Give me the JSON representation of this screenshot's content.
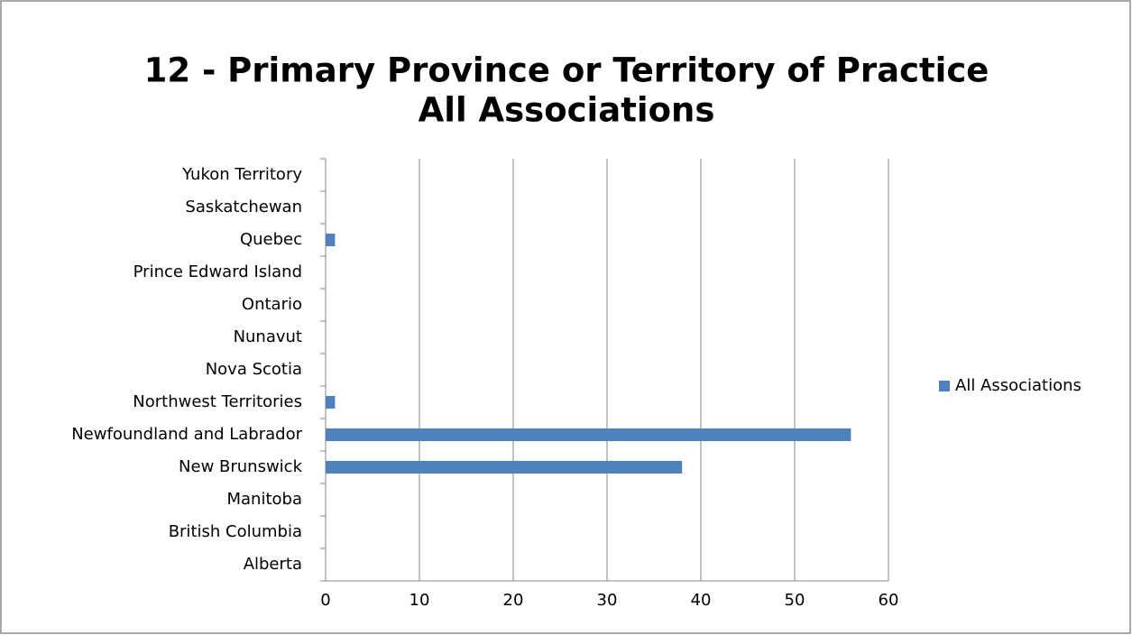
{
  "chart_data": {
    "type": "bar",
    "orientation": "horizontal",
    "title": "12 - Primary Province or Territory of Practice",
    "subtitle": "All Associations",
    "categories": [
      "Alberta",
      "British Columbia",
      "Manitoba",
      "New Brunswick",
      "Newfoundland and Labrador",
      "Northwest Territories",
      "Nova Scotia",
      "Nunavut",
      "Ontario",
      "Prince Edward Island",
      "Quebec",
      "Saskatchewan",
      "Yukon Territory"
    ],
    "series": [
      {
        "name": "All Associations",
        "color": "#4f81bd",
        "values": [
          0,
          0,
          0,
          38,
          56,
          1,
          0,
          0,
          0,
          0,
          1,
          0,
          0
        ]
      }
    ],
    "xlim": [
      0,
      60
    ],
    "xticks": [
      0,
      10,
      20,
      30,
      40,
      50,
      60
    ],
    "grid": true,
    "legend": "right"
  }
}
